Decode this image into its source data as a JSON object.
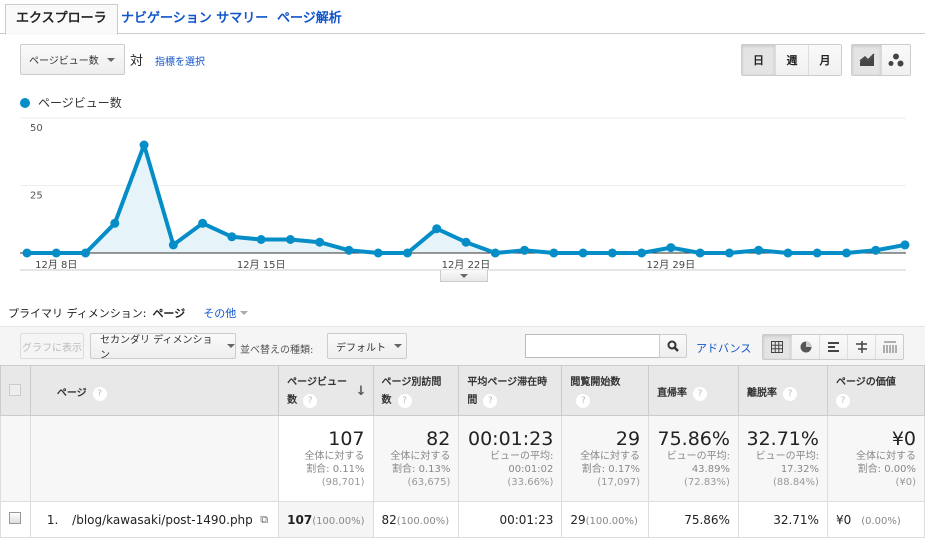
{
  "tabs": [
    {
      "label": "エクスプローラ",
      "active": true
    },
    {
      "label": "ナビゲーション サマリー",
      "active": false
    },
    {
      "label": "ページ解析",
      "active": false
    }
  ],
  "metric_selector": {
    "value": "ページビュー数",
    "vs_label": "対",
    "select_metric_link": "指標を選択"
  },
  "period_buttons": [
    {
      "label": "日",
      "active": true
    },
    {
      "label": "週",
      "active": false
    },
    {
      "label": "月",
      "active": false
    }
  ],
  "chart_type_buttons": [
    {
      "icon": "line-chart-icon",
      "active": true
    },
    {
      "icon": "motion-chart-icon",
      "active": false
    }
  ],
  "colors": {
    "accent": "#058dc7",
    "fill": "#e6f4fa",
    "link": "#1155cc"
  },
  "chart_data": {
    "type": "area",
    "title": "",
    "legend": [
      "ページビュー数"
    ],
    "xlabel": "",
    "ylabel": "",
    "ylim": [
      0,
      50
    ],
    "yticks": [
      25,
      50
    ],
    "grid": true,
    "x_tick_labels": [
      {
        "label": "12月 8日",
        "index": 1
      },
      {
        "label": "12月 15日",
        "index": 8
      },
      {
        "label": "12月 22日",
        "index": 15
      },
      {
        "label": "12月 29日",
        "index": 22
      }
    ],
    "x": [
      "12/7",
      "12/8",
      "12/9",
      "12/10",
      "12/11",
      "12/12",
      "12/13",
      "12/14",
      "12/15",
      "12/16",
      "12/17",
      "12/18",
      "12/19",
      "12/20",
      "12/21",
      "12/22",
      "12/23",
      "12/24",
      "12/25",
      "12/26",
      "12/27",
      "12/28",
      "12/29",
      "12/30",
      "12/31",
      "1/1",
      "1/2",
      "1/3",
      "1/4",
      "1/5",
      "1/6"
    ],
    "series": [
      {
        "name": "ページビュー数",
        "values": [
          0,
          0,
          0,
          11,
          40,
          3,
          11,
          6,
          5,
          5,
          4,
          1,
          0,
          0,
          9,
          4,
          0,
          1,
          0,
          0,
          0,
          0,
          2,
          0,
          0,
          1,
          0,
          0,
          0,
          1,
          3
        ]
      }
    ]
  },
  "dimension": {
    "label": "プライマリ ディメンション:",
    "active": "ページ",
    "other": "その他"
  },
  "toolbar": {
    "plot_rows": "グラフに表示",
    "secondary_dimension": "セカンダリ ディメンション",
    "sort_label": "並べ替えの種類:",
    "sort_value": "デフォルト",
    "search_placeholder": "",
    "advanced": "アドバンス"
  },
  "table": {
    "headers": [
      {
        "label": "ページ"
      },
      {
        "label": "ページビュー数",
        "sorted": true
      },
      {
        "label": "ページ別訪問数"
      },
      {
        "label": "平均ページ滞在時間"
      },
      {
        "label": "閲覧開始数"
      },
      {
        "label": "直帰率"
      },
      {
        "label": "離脱率"
      },
      {
        "label": "ページの価値"
      }
    ],
    "totals": [
      {
        "value": "107",
        "line1": "全体に対する",
        "line2": "割合: 0.11%",
        "line3": "(98,701)"
      },
      {
        "value": "82",
        "line1": "全体に対する",
        "line2": "割合: 0.13%",
        "line3": "(63,675)"
      },
      {
        "value": "00:01:23",
        "line1": "ビューの平均:",
        "line2": "00:01:02",
        "line3": "(33.66%)"
      },
      {
        "value": "29",
        "line1": "全体に対する",
        "line2": "割合: 0.17%",
        "line3": "(17,097)"
      },
      {
        "value": "75.86%",
        "line1": "ビューの平均:",
        "line2": "43.89%",
        "line3": "(72.83%)"
      },
      {
        "value": "32.71%",
        "line1": "ビューの平均:",
        "line2": "17.32%",
        "line3": "(88.84%)"
      },
      {
        "value": "¥0",
        "line1": "全体に対する",
        "line2": "割合: 0.00%",
        "line3": "(¥0)"
      }
    ],
    "rows": [
      {
        "index": "1.",
        "page": "/blog/kawasaki/post-1490.php",
        "pageviews": "107",
        "pageviews_pct": "(100.00%)",
        "unique": "82",
        "unique_pct": "(100.00%)",
        "avg_time": "00:01:23",
        "entrances": "29",
        "entrances_pct": "(100.00%)",
        "bounce": "75.86%",
        "exit": "32.71%",
        "value": "¥0",
        "value_pct": "(0.00%)"
      }
    ]
  }
}
